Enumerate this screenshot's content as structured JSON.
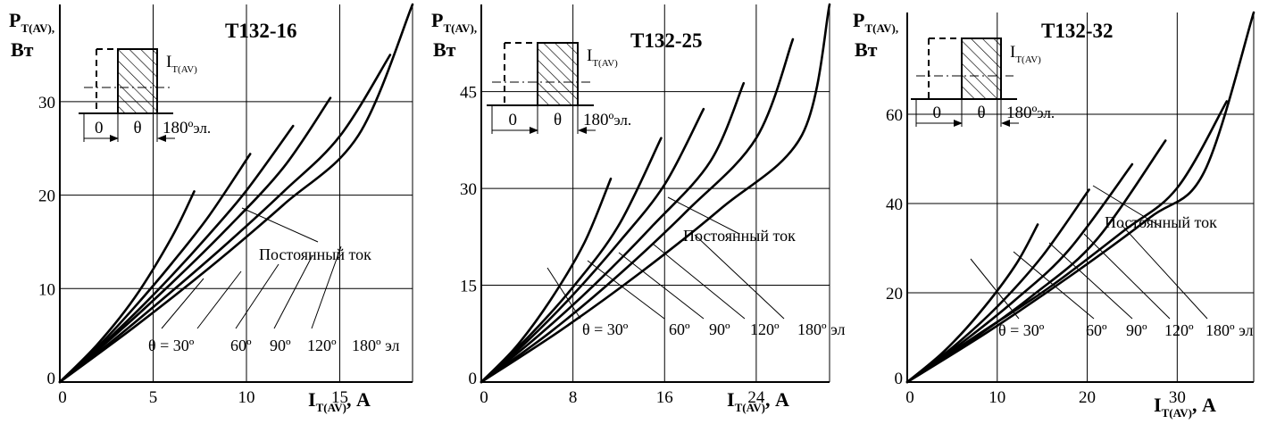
{
  "chart_data": [
    {
      "type": "line",
      "title": "T132-16",
      "ylabel": {
        "main": "P",
        "sub": "T(AV),",
        "unit": "Вт"
      },
      "xlabel": {
        "main": "I",
        "sub": "T(AV)",
        "unit": ", А"
      },
      "xlim": [
        0,
        18.9
      ],
      "ylim": [
        0,
        40.4
      ],
      "xticks": [
        0,
        5,
        10,
        15
      ],
      "yticks": [
        0,
        10,
        20,
        30
      ],
      "grid": true,
      "series": [
        {
          "name": "θ = 30º",
          "x": [
            0,
            2,
            4,
            6,
            7.2
          ],
          "y": [
            0,
            4.0,
            9.0,
            15.5,
            20.4
          ]
        },
        {
          "name": "60º",
          "x": [
            0,
            2,
            4,
            6,
            8,
            10.2
          ],
          "y": [
            0,
            3.7,
            8.0,
            12.7,
            17.8,
            24.4
          ]
        },
        {
          "name": "90º",
          "x": [
            0,
            2,
            4,
            6,
            8,
            10,
            12.5
          ],
          "y": [
            0,
            3.5,
            7.3,
            11.4,
            15.8,
            20.5,
            27.4
          ]
        },
        {
          "name": "120º",
          "x": [
            0,
            3,
            6,
            9,
            12,
            14.5
          ],
          "y": [
            0,
            5.1,
            10.6,
            16.5,
            23.0,
            30.4
          ]
        },
        {
          "name": "180º эл",
          "x": [
            0,
            3,
            6,
            9,
            12,
            15,
            17.7
          ],
          "y": [
            0,
            4.7,
            9.7,
            14.9,
            20.4,
            26.3,
            35.0
          ]
        },
        {
          "name": "Постоянный ток",
          "x": [
            0,
            4,
            8,
            12,
            16,
            18.9
          ],
          "y": [
            0,
            5.9,
            12.2,
            19.0,
            26.4,
            40.4
          ]
        }
      ],
      "annotations": {
        "dc_label": "Постоянный ток",
        "theta_labels": [
          "θ = 30º",
          "60º",
          "90º",
          "120º",
          "180º эл"
        ]
      }
    },
    {
      "type": "line",
      "title": "T132-25",
      "ylabel": {
        "main": "P",
        "sub": "T(AV),",
        "unit": "Вт"
      },
      "xlabel": {
        "main": "I",
        "sub": "T(AV)",
        "unit": ", А"
      },
      "xlim": [
        0,
        30.4
      ],
      "ylim": [
        0,
        58.5
      ],
      "xticks": [
        0,
        8,
        16,
        24
      ],
      "yticks": [
        0,
        15,
        30,
        45
      ],
      "grid": true,
      "series": [
        {
          "name": "θ = 30º",
          "x": [
            0,
            3,
            6,
            9,
            11.3
          ],
          "y": [
            0,
            5.4,
            12.6,
            21.6,
            31.5
          ]
        },
        {
          "name": "60º",
          "x": [
            0,
            4,
            8,
            12,
            15.7
          ],
          "y": [
            0,
            6.8,
            14.7,
            24.3,
            37.8
          ]
        },
        {
          "name": "90º",
          "x": [
            0,
            4,
            8,
            12,
            16,
            19.4
          ],
          "y": [
            0,
            6.3,
            13.5,
            21.6,
            30.6,
            42.3
          ]
        },
        {
          "name": "120º",
          "x": [
            0,
            5,
            10,
            15,
            20,
            22.9
          ],
          "y": [
            0,
            7.2,
            15.3,
            24.3,
            34.2,
            46.3
          ]
        },
        {
          "name": "180º эл",
          "x": [
            0,
            6,
            12,
            18,
            24,
            27.2
          ],
          "y": [
            0,
            7.7,
            16.6,
            26.6,
            37.8,
            53.1
          ]
        },
        {
          "name": "Постоянный ток",
          "x": [
            0,
            7,
            14,
            21,
            28,
            30.4
          ],
          "y": [
            0,
            8.1,
            17.1,
            27.0,
            38.3,
            58.5
          ]
        }
      ],
      "annotations": {
        "dc_label": "Постоянный ток",
        "theta_labels": [
          "θ = 30º",
          "60º",
          "90º",
          "120º",
          "180º эл"
        ]
      }
    },
    {
      "type": "line",
      "title": "T132-32",
      "ylabel": {
        "main": "P",
        "sub": "T(AV),",
        "unit": "Вт"
      },
      "xlabel": {
        "main": "I",
        "sub": "T(AV)",
        "unit": ", А"
      },
      "xlim": [
        0,
        38.5
      ],
      "ylim": [
        0,
        82.8
      ],
      "xticks": [
        0,
        10,
        20,
        30
      ],
      "yticks": [
        0,
        20,
        40,
        60
      ],
      "grid": true,
      "series": [
        {
          "name": "θ = 30º",
          "x": [
            0,
            4,
            8,
            12,
            14.5
          ],
          "y": [
            0,
            6.7,
            15.4,
            26.1,
            35.3
          ]
        },
        {
          "name": "60º",
          "x": [
            0,
            5,
            10,
            15,
            20.2
          ],
          "y": [
            0,
            7.7,
            16.9,
            28.2,
            43.1
          ]
        },
        {
          "name": "90º",
          "x": [
            0,
            6,
            12,
            18,
            25
          ],
          "y": [
            0,
            8.7,
            18.4,
            29.7,
            48.8
          ]
        },
        {
          "name": "120º",
          "x": [
            0,
            7,
            14,
            21,
            28.7
          ],
          "y": [
            0,
            9.2,
            19.5,
            31.8,
            54.1
          ]
        },
        {
          "name": "180º эл",
          "x": [
            0,
            8,
            16,
            24,
            30,
            35.5
          ],
          "y": [
            0,
            10.8,
            21.5,
            33.8,
            43.5,
            62.9
          ]
        },
        {
          "name": "Постоянный ток",
          "x": [
            0,
            9,
            18,
            27,
            33,
            38.5
          ],
          "y": [
            0,
            11.3,
            23.6,
            36.9,
            47.1,
            82.8
          ]
        }
      ],
      "annotations": {
        "dc_label": "Постоянный ток",
        "theta_labels": [
          "θ = 30º",
          "60º",
          "90º",
          "120º",
          "180º эл"
        ]
      }
    }
  ],
  "inset": {
    "zero_label": "0",
    "theta_label": "θ",
    "end_label": "180º",
    "end_unit": "эл.",
    "current_label": "I",
    "current_sub": "T(AV)"
  }
}
